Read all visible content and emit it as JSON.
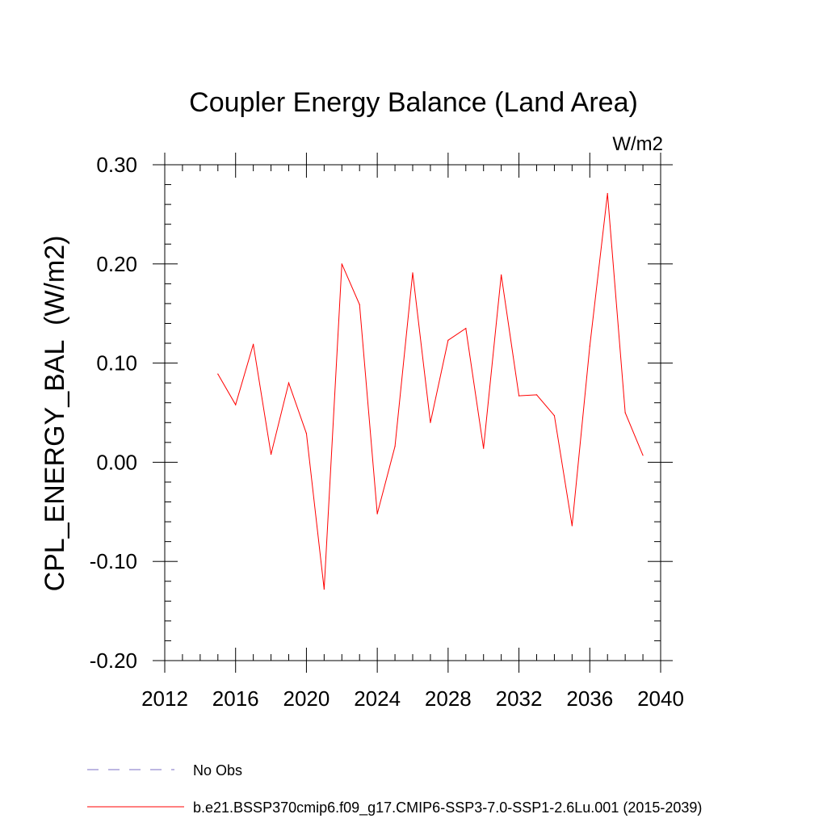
{
  "chart_data": {
    "type": "line",
    "title": "Coupler Energy Balance (Land Area)",
    "units_label": "W/m2",
    "ylabel": "CPL_ENERGY_BAL  (W/m2)",
    "xlabel": "",
    "xlim": [
      2012,
      2040
    ],
    "ylim": [
      -0.2,
      0.3
    ],
    "x_ticks": [
      2012,
      2016,
      2020,
      2024,
      2028,
      2032,
      2036,
      2040
    ],
    "x_tick_labels": [
      "2012",
      "2016",
      "2020",
      "2024",
      "2028",
      "2032",
      "2036",
      "2040"
    ],
    "y_ticks": [
      -0.2,
      -0.1,
      0.0,
      0.1,
      0.2,
      0.3
    ],
    "y_tick_labels": [
      "-0.20",
      "-0.10",
      "0.00",
      "0.10",
      "0.20",
      "0.30"
    ],
    "grid": false,
    "legend_position": "bottom-left",
    "series": [
      {
        "name": "b.e21.BSSP370cmip6.f09_g17.CMIP6-SSP3-7.0-SSP1-2.6Lu.001 (2015-2039)",
        "color": "#ff0000",
        "line_style": "solid",
        "x": [
          2015,
          2016,
          2017,
          2018,
          2019,
          2020,
          2021,
          2022,
          2023,
          2024,
          2025,
          2026,
          2027,
          2028,
          2029,
          2030,
          2031,
          2032,
          2033,
          2034,
          2035,
          2036,
          2037,
          2038,
          2039
        ],
        "values": [
          0.089,
          0.058,
          0.119,
          0.008,
          0.08,
          0.029,
          -0.128,
          0.2,
          0.159,
          -0.052,
          0.016,
          0.191,
          0.04,
          0.123,
          0.135,
          0.014,
          0.189,
          0.067,
          0.068,
          0.047,
          -0.064,
          0.117,
          0.271,
          0.05,
          0.007
        ]
      }
    ],
    "legend": [
      {
        "label": "No Obs",
        "color": "#7b6fc4",
        "line_style": "dashed"
      },
      {
        "label": "b.e21.BSSP370cmip6.f09_g17.CMIP6-SSP3-7.0-SSP1-2.6Lu.001 (2015-2039)",
        "color": "#ff0000",
        "line_style": "solid"
      }
    ]
  }
}
